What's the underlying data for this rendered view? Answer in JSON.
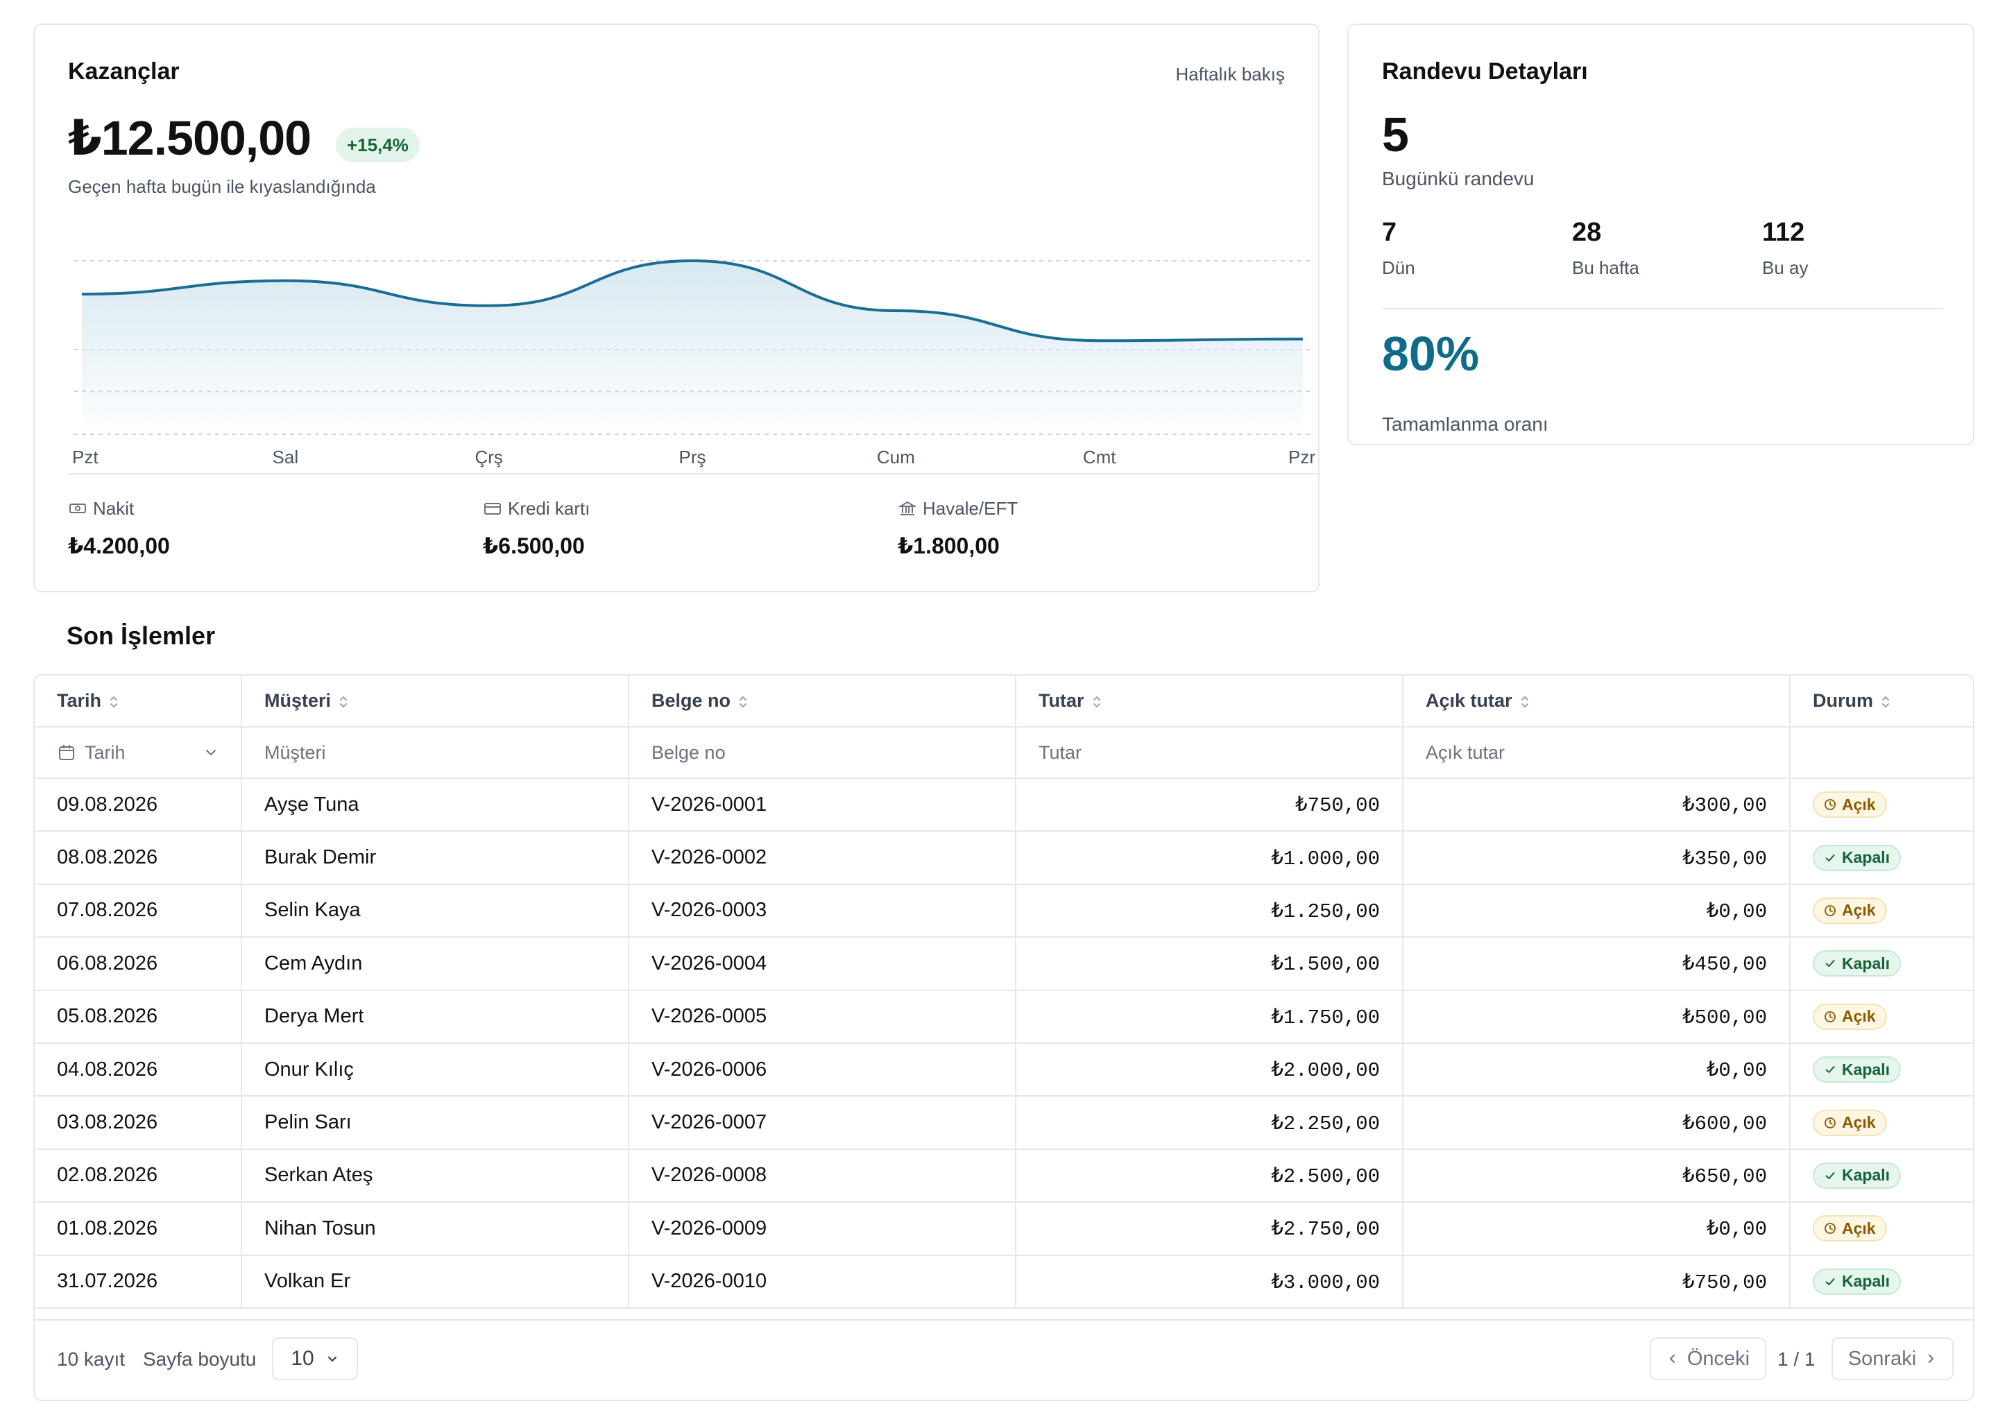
{
  "earnings": {
    "title": "Kazançlar",
    "period_label": "Haftalık bakış",
    "total": "₺12.500,00",
    "change": "+15,4%",
    "comparison": "Geçen hafta bugün ile kıyaslandığında",
    "methods": [
      {
        "icon": "cash-icon",
        "label": "Nakit",
        "value": "₺4.200,00"
      },
      {
        "icon": "credit-card-icon",
        "label": "Kredi kartı",
        "value": "₺6.500,00"
      },
      {
        "icon": "bank-icon",
        "label": "Havale/EFT",
        "value": "₺1.800,00"
      }
    ]
  },
  "chart_data": {
    "type": "area",
    "categories": [
      "Pzt",
      "Sal",
      "Çrş",
      "Prş",
      "Cum",
      "Cmt",
      "Pzr"
    ],
    "values": [
      0.8,
      0.88,
      0.73,
      1.0,
      0.7,
      0.52,
      0.53
    ],
    "title": "",
    "xlabel": "",
    "ylabel": "",
    "grid": true,
    "legend": "none",
    "colors": {
      "line": "#1a6e94",
      "fill": "#d6e8f0"
    }
  },
  "appointments": {
    "title": "Randevu Detayları",
    "today_count": "5",
    "today_label": "Bugünkü randevu",
    "stats": [
      {
        "value": "7",
        "label": "Dün"
      },
      {
        "value": "28",
        "label": "Bu hafta"
      },
      {
        "value": "112",
        "label": "Bu ay"
      }
    ],
    "completion_rate": "80%",
    "completion_label": "Tamamlanma oranı",
    "accent": "#0e6b8a"
  },
  "transactions": {
    "title": "Son İşlemler",
    "columns": [
      "Tarih",
      "Müşteri",
      "Belge no",
      "Tutar",
      "Açık tutar",
      "Durum"
    ],
    "filters": [
      "Tarih",
      "Müşteri",
      "Belge no",
      "Tutar",
      "Açık tutar",
      ""
    ],
    "rows": [
      {
        "date": "09.08.2026",
        "customer": "Ayşe Tuna",
        "doc": "V-2026-0001",
        "amount": "₺750,00",
        "open": "₺300,00",
        "status": "Açık"
      },
      {
        "date": "08.08.2026",
        "customer": "Burak Demir",
        "doc": "V-2026-0002",
        "amount": "₺1.000,00",
        "open": "₺350,00",
        "status": "Kapalı"
      },
      {
        "date": "07.08.2026",
        "customer": "Selin Kaya",
        "doc": "V-2026-0003",
        "amount": "₺1.250,00",
        "open": "₺0,00",
        "status": "Açık"
      },
      {
        "date": "06.08.2026",
        "customer": "Cem Aydın",
        "doc": "V-2026-0004",
        "amount": "₺1.500,00",
        "open": "₺450,00",
        "status": "Kapalı"
      },
      {
        "date": "05.08.2026",
        "customer": "Derya Mert",
        "doc": "V-2026-0005",
        "amount": "₺1.750,00",
        "open": "₺500,00",
        "status": "Açık"
      },
      {
        "date": "04.08.2026",
        "customer": "Onur Kılıç",
        "doc": "V-2026-0006",
        "amount": "₺2.000,00",
        "open": "₺0,00",
        "status": "Kapalı"
      },
      {
        "date": "03.08.2026",
        "customer": "Pelin Sarı",
        "doc": "V-2026-0007",
        "amount": "₺2.250,00",
        "open": "₺600,00",
        "status": "Açık"
      },
      {
        "date": "02.08.2026",
        "customer": "Serkan Ateş",
        "doc": "V-2026-0008",
        "amount": "₺2.500,00",
        "open": "₺650,00",
        "status": "Kapalı"
      },
      {
        "date": "01.08.2026",
        "customer": "Nihan Tosun",
        "doc": "V-2026-0009",
        "amount": "₺2.750,00",
        "open": "₺0,00",
        "status": "Açık"
      },
      {
        "date": "31.07.2026",
        "customer": "Volkan Er",
        "doc": "V-2026-0010",
        "amount": "₺3.000,00",
        "open": "₺750,00",
        "status": "Kapalı"
      }
    ],
    "footer": {
      "count": "10 kayıt",
      "page_size_label": "Sayfa boyutu",
      "page_size": "10",
      "prev": "Önceki",
      "page_info": "1 / 1",
      "next": "Sonraki"
    }
  }
}
